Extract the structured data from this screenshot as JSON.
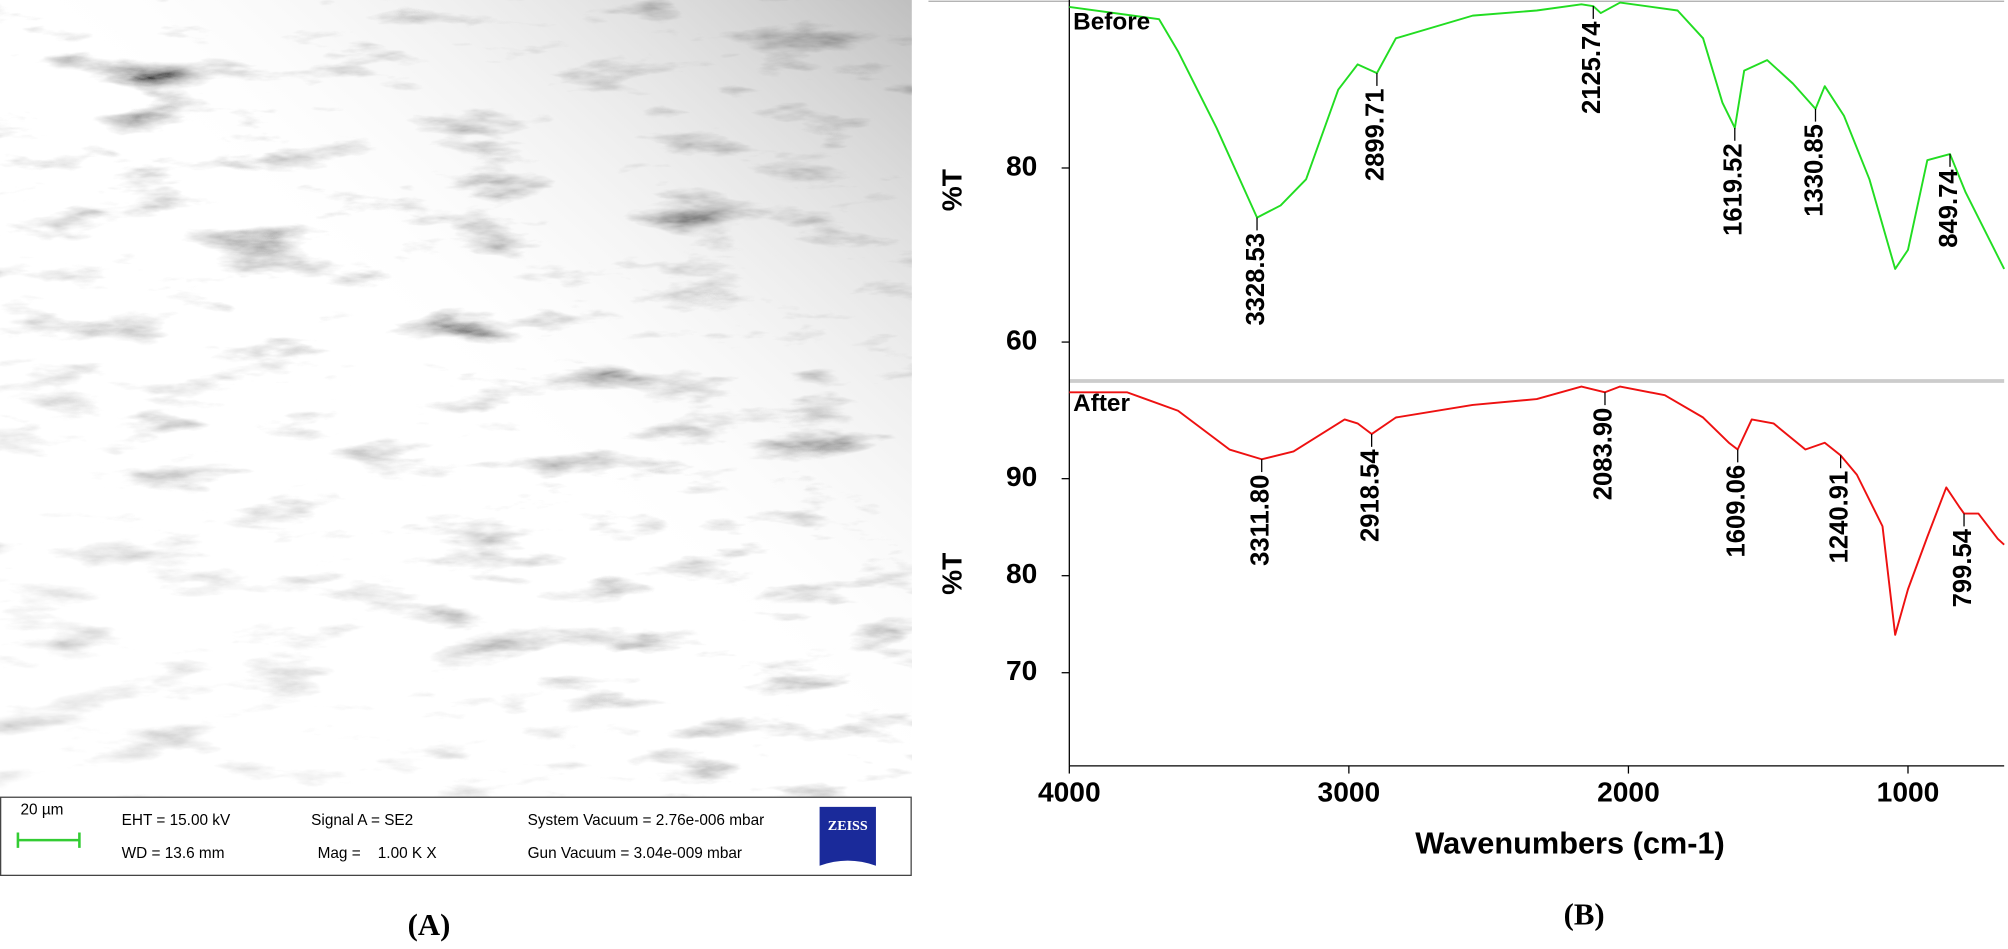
{
  "panel_a": {
    "scale_bar": "20 µm",
    "eht": "EHT = 15.00 kV",
    "wd": "WD = 13.6 mm",
    "signal": "Signal A = SE2",
    "mag": "Mag =    1.00 K X",
    "system_vacuum": "System Vacuum = 2.76e-006 mbar",
    "gun_vacuum": "Gun Vacuum = 3.04e-009 mbar",
    "logo": "ZEISS"
  },
  "captions": [
    "(A)",
    "(B)"
  ],
  "chart_data": [
    {
      "type": "line",
      "ylabel": "%T",
      "xlim": [
        4000,
        656
      ],
      "ylim": [
        55.6,
        99.3
      ],
      "yticks": [
        60,
        80
      ],
      "x": [
        4000,
        3679,
        3611,
        3473,
        3328.53,
        3244,
        3153,
        3038,
        2969,
        2899.71,
        2832,
        2557,
        2328,
        2168,
        2125.74,
        2099,
        2030,
        1824,
        1733,
        1664,
        1619.52,
        1586,
        1504,
        1412,
        1330.85,
        1298,
        1229,
        1138,
        1046,
        1000,
        931,
        849.74,
        794,
        656
      ],
      "series": [
        {
          "name": "Before",
          "color": "#22dd22",
          "values": [
            98.5,
            97.1,
            93.4,
            84.6,
            74.3,
            75.7,
            78.7,
            89.0,
            91.9,
            90.9,
            94.9,
            97.5,
            98.1,
            98.8,
            98.6,
            97.8,
            99.0,
            98.1,
            94.9,
            87.5,
            84.6,
            91.2,
            92.4,
            89.7,
            86.8,
            89.4,
            86.0,
            78.7,
            68.4,
            70.6,
            80.9,
            81.6,
            77.2,
            68.4
          ]
        }
      ],
      "peaks": [
        {
          "x": 3328.53,
          "label": "3328.53"
        },
        {
          "x": 2899.71,
          "label": "2899.71"
        },
        {
          "x": 2125.74,
          "label": "2125.74"
        },
        {
          "x": 1619.52,
          "label": "1619.52"
        },
        {
          "x": 1330.85,
          "label": "1330.85"
        },
        {
          "x": 849.74,
          "label": "849.74"
        }
      ]
    },
    {
      "type": "line",
      "ylabel": "%T",
      "xlabel": "Wavenumbers (cm-1)",
      "xlim": [
        4000,
        656
      ],
      "ylim": [
        60.4,
        100
      ],
      "yticks": [
        70,
        80,
        90
      ],
      "xticks": [
        4000,
        3000,
        2000,
        1000
      ],
      "x": [
        4000,
        3794,
        3611,
        3427,
        3311.8,
        3198,
        3015,
        2969,
        2918.54,
        2832,
        2557,
        2328,
        2168,
        2083.9,
        2030,
        1870,
        1733,
        1641,
        1609.06,
        1559,
        1481,
        1367,
        1298,
        1240.91,
        1183,
        1091,
        1046,
        1000,
        931,
        863,
        817,
        799.54,
        748,
        679,
        656
      ],
      "series": [
        {
          "name": "After",
          "color": "#ee1111",
          "values": [
            98.9,
            98.9,
            97.0,
            93.0,
            92.0,
            92.8,
            96.1,
            95.7,
            94.6,
            96.3,
            97.6,
            98.2,
            99.5,
            98.9,
            99.5,
            98.6,
            96.3,
            93.7,
            93.0,
            96.1,
            95.7,
            93.0,
            93.7,
            92.4,
            90.4,
            85.1,
            73.9,
            78.6,
            84.0,
            89.1,
            87.1,
            86.4,
            86.4,
            83.8,
            83.2
          ]
        }
      ],
      "peaks": [
        {
          "x": 3311.8,
          "label": "3311.80"
        },
        {
          "x": 2918.54,
          "label": "2918.54"
        },
        {
          "x": 2083.9,
          "label": "2083.90"
        },
        {
          "x": 1609.06,
          "label": "1609.06"
        },
        {
          "x": 1240.91,
          "label": "1240.91"
        },
        {
          "x": 799.54,
          "label": "799.54"
        }
      ]
    }
  ]
}
